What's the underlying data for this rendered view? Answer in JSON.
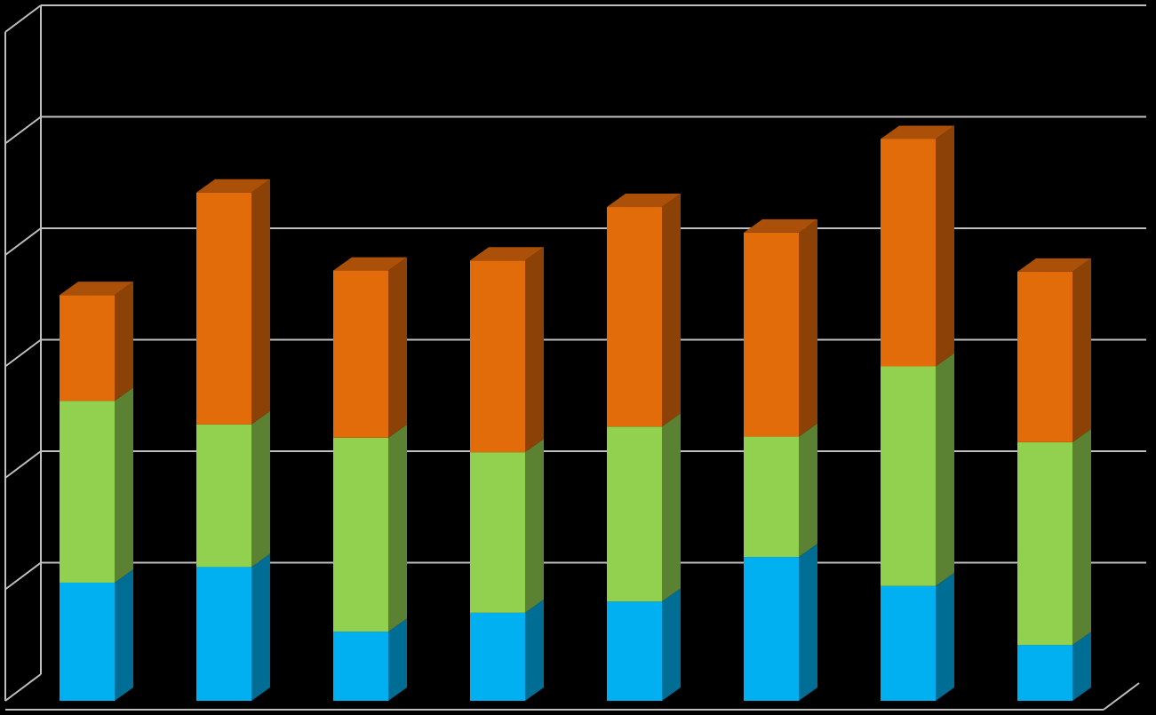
{
  "chart_data": {
    "type": "bar",
    "stacked": true,
    "three_d": true,
    "grid": true,
    "legend": "none",
    "title": "",
    "xlabel": "",
    "ylabel": "",
    "ylim": [
      0,
      6
    ],
    "categories": [
      "",
      "",
      "",
      "",
      "",
      "",
      "",
      ""
    ],
    "series": [
      {
        "color": "#00B0F0",
        "values": [
          1.06,
          1.2,
          0.62,
          0.79,
          0.89,
          1.29,
          1.03,
          0.5
        ]
      },
      {
        "color": "#92D050",
        "values": [
          1.63,
          1.28,
          1.74,
          1.44,
          1.57,
          1.08,
          1.97,
          1.82
        ]
      },
      {
        "color": "#E26B0A",
        "values": [
          0.95,
          2.08,
          1.5,
          1.72,
          1.97,
          1.83,
          2.04,
          1.53
        ]
      }
    ]
  },
  "colors": {
    "background": "#000000",
    "gridline": "#BFBFBF"
  }
}
